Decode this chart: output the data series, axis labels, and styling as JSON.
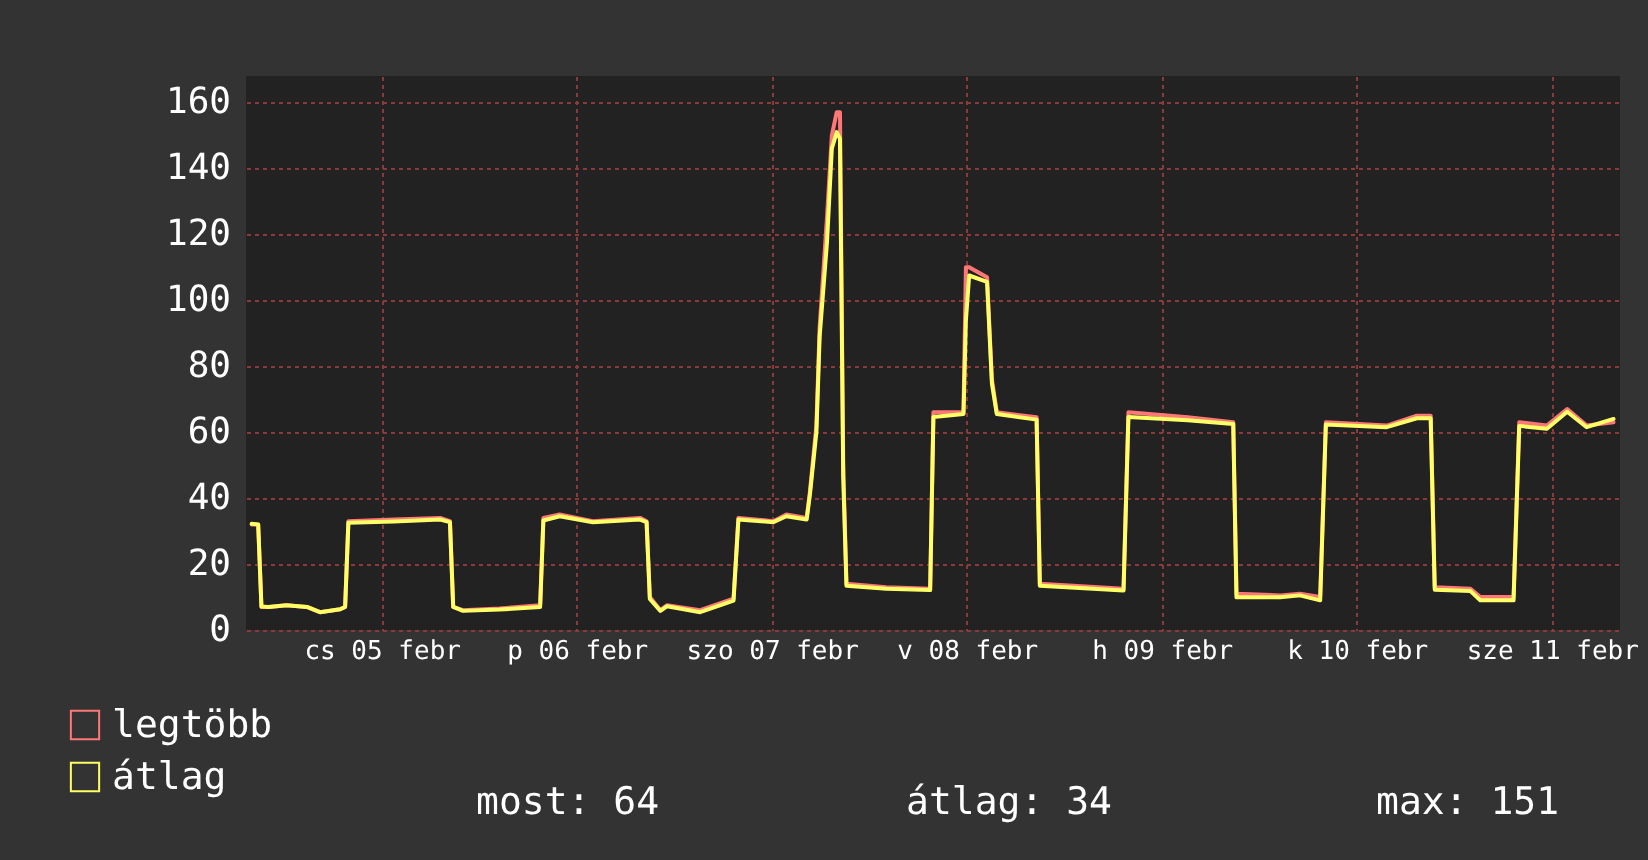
{
  "chart_data": {
    "type": "line",
    "x": [
      "--02-04T20:00",
      "--02-04T20:48",
      "--02-04T21:12",
      "--02-04T22:06",
      "--02-05T00:18",
      "--02-05T02:48",
      "--02-05T04:24",
      "--02-05T06:54",
      "--02-05T07:30",
      "--02-05T07:54",
      "--02-05T13:30",
      "--02-05T19:12",
      "--02-05T20:24",
      "--02-05T20:48",
      "--02-05T22:00",
      "--02-06T02:30",
      "--02-06T07:30",
      "--02-06T07:54",
      "--02-06T09:54",
      "--02-06T14:00",
      "--02-06T19:48",
      "--02-06T20:36",
      "--02-06T21:00",
      "--02-06T22:18",
      "--02-06T23:06",
      "--02-07T03:12",
      "--02-07T07:18",
      "--02-07T07:54",
      "--02-07T12:12",
      "--02-07T13:48",
      "--02-07T16:18",
      "--02-07T16:42",
      "--02-07T17:30",
      "--02-07T17:54",
      "--02-07T18:48",
      "--02-07T19:24",
      "--02-07T20:00",
      "--02-07T20:24",
      "--02-07T20:48",
      "--02-07T21:12",
      "--02-08T02:06",
      "--02-08T07:30",
      "--02-08T07:54",
      "--02-08T11:36",
      "--02-08T11:54",
      "--02-08T12:18",
      "--02-08T14:30",
      "--02-08T15:06",
      "--02-08T15:42",
      "--02-08T20:36",
      "--02-08T21:00",
      "--02-09T07:18",
      "--02-09T07:54",
      "--02-09T15:12",
      "--02-09T20:48",
      "--02-09T21:12",
      "--02-10T02:36",
      "--02-10T05:00",
      "--02-10T07:30",
      "--02-10T08:12",
      "--02-10T15:42",
      "--02-10T19:24",
      "--02-10T21:06",
      "--02-10T21:36",
      "--02-11T02:00",
      "--02-11T03:12",
      "--02-11T07:18",
      "--02-11T08:00",
      "--02-11T11:24",
      "--02-11T13:54",
      "--02-11T16:18",
      "--02-11T19:36"
    ],
    "series": [
      {
        "name": "legtöbb",
        "color": "#ff7777",
        "values": [
          32,
          32,
          7,
          7,
          7.5,
          7,
          5.4,
          6.3,
          7,
          33,
          33.5,
          34,
          33,
          7,
          6,
          6.5,
          7.5,
          34,
          35,
          33,
          34,
          33,
          10,
          6,
          7.5,
          6,
          9.5,
          34,
          33,
          35,
          34,
          42,
          62,
          92,
          125,
          150,
          157,
          157,
          50,
          14,
          13,
          12.5,
          66,
          66,
          110,
          110,
          107,
          76,
          66,
          64.5,
          14,
          12.5,
          66,
          64.5,
          63,
          11,
          10.5,
          11,
          10,
          63,
          62,
          65,
          65,
          13,
          12.5,
          10,
          10,
          63,
          62,
          67,
          62,
          63
        ]
      },
      {
        "name": "átlag",
        "color": "#ffff66",
        "values": [
          32.2,
          32,
          7.1,
          7,
          7.5,
          7,
          5.4,
          6.3,
          7,
          32.5,
          32.9,
          33.5,
          32.7,
          7,
          5.8,
          6.2,
          7,
          33.2,
          34.5,
          32.7,
          33.5,
          32.7,
          9.4,
          5.8,
          7.2,
          5.4,
          8.9,
          33.5,
          32.7,
          34.5,
          33.5,
          41,
          60,
          89,
          117.5,
          146,
          151,
          149,
          46.6,
          13.4,
          12.5,
          12.1,
          64.6,
          65.5,
          94,
          107.5,
          105.6,
          74.8,
          65.5,
          63.8,
          13.4,
          12,
          64.6,
          63.6,
          62.5,
          9.9,
          9.9,
          10.5,
          9,
          62.3,
          61.5,
          64.2,
          64.2,
          12.2,
          11.8,
          9,
          9,
          61.9,
          61,
          66.2,
          61.5,
          64
        ]
      }
    ],
    "xlim": [
      "--02-04T19:18",
      "--02-11T20:24"
    ],
    "xticks": [
      {
        "value": "--02-05T12:00",
        "label": "cs 05 febr"
      },
      {
        "value": "--02-06T12:00",
        "label": "p 06 febr"
      },
      {
        "value": "--02-07T12:00",
        "label": "szo 07 febr"
      },
      {
        "value": "--02-08T12:00",
        "label": "v 08 febr"
      },
      {
        "value": "--02-09T12:00",
        "label": "h 09 febr"
      },
      {
        "value": "--02-10T12:00",
        "label": "k 10 febr"
      },
      {
        "value": "--02-11T12:00",
        "label": "sze 11 febr"
      }
    ],
    "ylim": [
      0,
      168
    ],
    "yticks": [
      0,
      20,
      40,
      60,
      80,
      100,
      120,
      140,
      160
    ],
    "grid": true,
    "legend": "bottom left",
    "annotations": [
      "most: 64",
      "átlag: 34",
      "max: 151"
    ]
  }
}
